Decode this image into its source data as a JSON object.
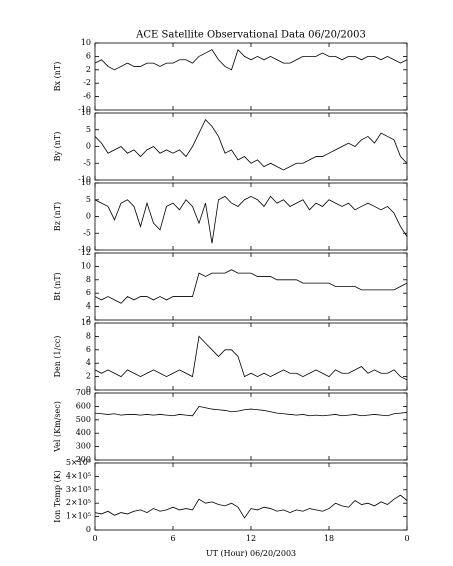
{
  "chart_data": [
    {
      "type": "line",
      "title": "ACE Satellite Observational Data  06/20/2003",
      "y_label": "Bx (nT)",
      "color": "#000000",
      "x": [
        0,
        0.5,
        1,
        1.5,
        2,
        2.5,
        3,
        3.5,
        4,
        4.5,
        5,
        5.5,
        6,
        6.5,
        7,
        7.5,
        8,
        8.5,
        9,
        9.5,
        10,
        10.5,
        11,
        11.5,
        12,
        12.5,
        13,
        13.5,
        14,
        14.5,
        15,
        15.5,
        16,
        16.5,
        17,
        17.5,
        18,
        18.5,
        19,
        19.5,
        20,
        20.5,
        21,
        21.5,
        22,
        22.5,
        23,
        23.5,
        24
      ],
      "values": [
        4,
        5,
        3,
        2,
        3,
        4,
        3,
        3,
        4,
        4,
        3,
        4,
        4,
        5,
        5,
        4,
        6,
        7,
        8,
        5,
        3,
        2,
        8,
        6,
        5,
        6,
        5,
        6,
        5,
        4,
        4,
        5,
        6,
        6,
        6,
        7,
        6,
        6,
        5,
        6,
        6,
        5,
        6,
        6,
        5,
        6,
        5,
        4,
        5
      ],
      "xlim": [
        0,
        24
      ],
      "ylim": [
        -10,
        10
      ],
      "yticks": [
        -10,
        -6,
        -2,
        2,
        6,
        10
      ]
    },
    {
      "type": "line",
      "y_label": "By (nT)",
      "color": "#000000",
      "x": [
        0,
        0.5,
        1,
        1.5,
        2,
        2.5,
        3,
        3.5,
        4,
        4.5,
        5,
        5.5,
        6,
        6.5,
        7,
        7.5,
        8,
        8.5,
        9,
        9.5,
        10,
        10.5,
        11,
        11.5,
        12,
        12.5,
        13,
        13.5,
        14,
        14.5,
        15,
        15.5,
        16,
        16.5,
        17,
        17.5,
        18,
        18.5,
        19,
        19.5,
        20,
        20.5,
        21,
        21.5,
        22,
        22.5,
        23,
        23.5,
        24
      ],
      "values": [
        3,
        1,
        -2,
        -1,
        0,
        -2,
        -1,
        -3,
        -1,
        0,
        -2,
        -1,
        -2,
        -1,
        -3,
        0,
        4,
        8,
        6,
        3,
        -2,
        -1,
        -4,
        -3,
        -5,
        -4,
        -6,
        -5,
        -6,
        -7,
        -6,
        -5,
        -5,
        -4,
        -3,
        -3,
        -2,
        -1,
        0,
        1,
        0,
        2,
        3,
        1,
        4,
        3,
        2,
        -3,
        -5
      ],
      "xlim": [
        0,
        24
      ],
      "ylim": [
        -10,
        10
      ],
      "yticks": [
        -10,
        -5,
        0,
        5,
        10
      ]
    },
    {
      "type": "line",
      "y_label": "Bz (nT)",
      "color": "#000000",
      "x": [
        0,
        0.5,
        1,
        1.5,
        2,
        2.5,
        3,
        3.5,
        4,
        4.5,
        5,
        5.5,
        6,
        6.5,
        7,
        7.5,
        8,
        8.5,
        9,
        9.5,
        10,
        10.5,
        11,
        11.5,
        12,
        12.5,
        13,
        13.5,
        14,
        14.5,
        15,
        15.5,
        16,
        16.5,
        17,
        17.5,
        18,
        18.5,
        19,
        19.5,
        20,
        20.5,
        21,
        21.5,
        22,
        22.5,
        23,
        23.5,
        24
      ],
      "values": [
        5,
        4,
        3,
        -1,
        4,
        5,
        3,
        -3,
        4,
        -2,
        -4,
        3,
        4,
        2,
        5,
        3,
        -2,
        4,
        -8,
        5,
        6,
        4,
        3,
        5,
        6,
        5,
        3,
        6,
        4,
        5,
        3,
        4,
        5,
        2,
        4,
        3,
        5,
        4,
        3,
        4,
        2,
        3,
        4,
        3,
        2,
        3,
        1,
        -3,
        -6
      ],
      "xlim": [
        0,
        24
      ],
      "ylim": [
        -10,
        10
      ],
      "yticks": [
        -10,
        -5,
        0,
        5,
        10
      ]
    },
    {
      "type": "line",
      "y_label": "Bt (nT)",
      "color": "#000000",
      "x": [
        0,
        0.5,
        1,
        1.5,
        2,
        2.5,
        3,
        3.5,
        4,
        4.5,
        5,
        5.5,
        6,
        6.5,
        7,
        7.5,
        8,
        8.5,
        9,
        9.5,
        10,
        10.5,
        11,
        11.5,
        12,
        12.5,
        13,
        13.5,
        14,
        14.5,
        15,
        15.5,
        16,
        16.5,
        17,
        17.5,
        18,
        18.5,
        19,
        19.5,
        20,
        20.5,
        21,
        21.5,
        22,
        22.5,
        23,
        23.5,
        24
      ],
      "values": [
        5.5,
        5,
        5.5,
        5,
        4.5,
        5.5,
        5,
        5.5,
        5.5,
        5,
        5.5,
        5,
        5.5,
        5.5,
        5.5,
        5.5,
        9,
        8.5,
        9,
        9,
        9,
        9.5,
        9,
        9,
        9,
        8.5,
        8.5,
        8.5,
        8,
        8,
        8,
        8,
        7.5,
        7.5,
        7.5,
        7.5,
        7.5,
        7,
        7,
        7,
        7,
        6.5,
        6.5,
        6.5,
        6.5,
        6.5,
        6.5,
        7,
        7.5
      ],
      "xlim": [
        0,
        24
      ],
      "ylim": [
        2,
        12
      ],
      "yticks": [
        2,
        4,
        6,
        8,
        10,
        12
      ]
    },
    {
      "type": "line",
      "y_label": "Den (1/cc)",
      "color": "#000000",
      "x": [
        0,
        0.5,
        1,
        1.5,
        2,
        2.5,
        3,
        3.5,
        4,
        4.5,
        5,
        5.5,
        6,
        6.5,
        7,
        7.5,
        8,
        8.5,
        9,
        9.5,
        10,
        10.5,
        11,
        11.5,
        12,
        12.5,
        13,
        13.5,
        14,
        14.5,
        15,
        15.5,
        16,
        16.5,
        17,
        17.5,
        18,
        18.5,
        19,
        19.5,
        20,
        20.5,
        21,
        21.5,
        22,
        22.5,
        23,
        23.5,
        24
      ],
      "values": [
        3,
        2.5,
        3,
        2.5,
        2,
        3,
        2.5,
        2,
        2.5,
        3,
        2.5,
        2,
        2.5,
        3,
        2.5,
        2,
        8,
        7,
        6,
        5,
        6,
        6,
        5,
        2,
        2.5,
        2,
        2.5,
        2,
        2.5,
        3,
        2.5,
        2.5,
        2,
        2.5,
        3,
        2.5,
        2,
        3,
        2.5,
        2.5,
        3,
        3.5,
        2.5,
        3,
        2.5,
        2.5,
        3,
        2,
        1.5
      ],
      "xlim": [
        0,
        24
      ],
      "ylim": [
        0,
        10
      ],
      "yticks": [
        0,
        2,
        4,
        6,
        8,
        10
      ]
    },
    {
      "type": "line",
      "y_label": "Vel (Km/sec)",
      "color": "#000000",
      "x": [
        0,
        0.5,
        1,
        1.5,
        2,
        2.5,
        3,
        3.5,
        4,
        4.5,
        5,
        5.5,
        6,
        6.5,
        7,
        7.5,
        8,
        8.5,
        9,
        9.5,
        10,
        10.5,
        11,
        11.5,
        12,
        12.5,
        13,
        13.5,
        14,
        14.5,
        15,
        15.5,
        16,
        16.5,
        17,
        17.5,
        18,
        18.5,
        19,
        19.5,
        20,
        20.5,
        21,
        21.5,
        22,
        22.5,
        23,
        23.5,
        24
      ],
      "values": [
        550,
        545,
        540,
        545,
        535,
        540,
        540,
        535,
        540,
        535,
        540,
        535,
        530,
        540,
        535,
        530,
        600,
        590,
        580,
        575,
        570,
        560,
        565,
        575,
        580,
        575,
        570,
        560,
        550,
        545,
        540,
        535,
        540,
        530,
        535,
        530,
        535,
        540,
        530,
        535,
        540,
        530,
        535,
        540,
        535,
        530,
        545,
        550,
        555
      ],
      "xlim": [
        0,
        24
      ],
      "ylim": [
        200,
        700
      ],
      "yticks": [
        200,
        300,
        400,
        500,
        600,
        700
      ]
    },
    {
      "type": "line",
      "y_label": "Ion Temp (K)",
      "x_label": "UT (Hour)  06/20/2003",
      "color": "#000000",
      "x": [
        0,
        0.5,
        1,
        1.5,
        2,
        2.5,
        3,
        3.5,
        4,
        4.5,
        5,
        5.5,
        6,
        6.5,
        7,
        7.5,
        8,
        8.5,
        9,
        9.5,
        10,
        10.5,
        11,
        11.5,
        12,
        12.5,
        13,
        13.5,
        14,
        14.5,
        15,
        15.5,
        16,
        16.5,
        17,
        17.5,
        18,
        18.5,
        19,
        19.5,
        20,
        20.5,
        21,
        21.5,
        22,
        22.5,
        23,
        23.5,
        24
      ],
      "values": [
        130000,
        120000,
        140000,
        110000,
        130000,
        120000,
        140000,
        150000,
        130000,
        160000,
        140000,
        150000,
        170000,
        150000,
        160000,
        150000,
        230000,
        200000,
        210000,
        190000,
        180000,
        200000,
        170000,
        90000,
        160000,
        150000,
        170000,
        160000,
        140000,
        150000,
        130000,
        150000,
        140000,
        160000,
        150000,
        140000,
        160000,
        200000,
        180000,
        170000,
        220000,
        190000,
        200000,
        180000,
        210000,
        190000,
        230000,
        260000,
        220000
      ],
      "xlim": [
        0,
        24
      ],
      "ylim": [
        0,
        500000
      ],
      "yticks": [
        0,
        {
          "value": 100000,
          "label": "1×10⁵"
        },
        {
          "value": 200000,
          "label": "2×10⁵"
        },
        {
          "value": 300000,
          "label": "3×10⁵"
        },
        {
          "value": 400000,
          "label": "4×10⁵"
        },
        {
          "value": 500000,
          "label": "5×10⁵"
        }
      ],
      "xticks": [
        0,
        6,
        12,
        18,
        {
          "value": 24,
          "label": "0"
        }
      ]
    }
  ]
}
